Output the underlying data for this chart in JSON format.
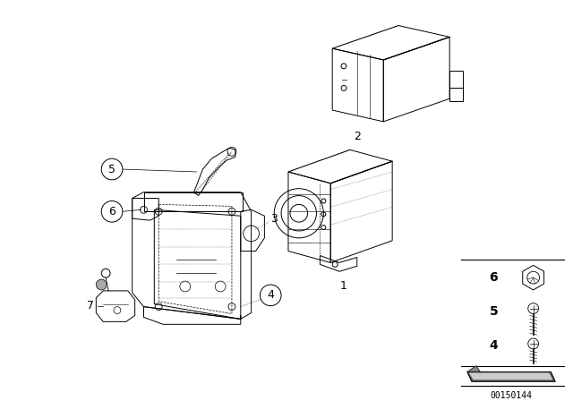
{
  "bg_color": "#ffffff",
  "line_color": "#000000",
  "figure_width": 6.4,
  "figure_height": 4.48,
  "dpi": 100,
  "watermark": "00150144"
}
